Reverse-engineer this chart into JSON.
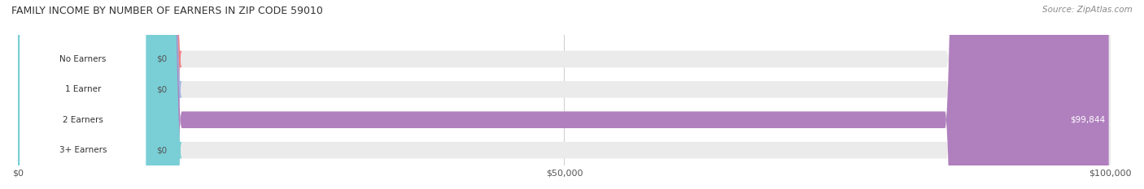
{
  "title": "FAMILY INCOME BY NUMBER OF EARNERS IN ZIP CODE 59010",
  "source": "Source: ZipAtlas.com",
  "categories": [
    "No Earners",
    "1 Earner",
    "2 Earners",
    "3+ Earners"
  ],
  "values": [
    0,
    0,
    99844,
    0
  ],
  "bar_colors": [
    "#f08080",
    "#a0b4e0",
    "#b07fbe",
    "#7acfd6"
  ],
  "label_colors": [
    "#f08080",
    "#a0b4e0",
    "#b07fbe",
    "#7acfd6"
  ],
  "bar_bg_color": "#f0f0f0",
  "value_labels": [
    "$0",
    "$0",
    "$99,844",
    "$0"
  ],
  "xlim": [
    0,
    100000
  ],
  "xticks": [
    0,
    50000,
    100000
  ],
  "xtick_labels": [
    "$0",
    "$50,000",
    "$100,000"
  ],
  "figsize": [
    14.06,
    2.33
  ],
  "dpi": 100
}
